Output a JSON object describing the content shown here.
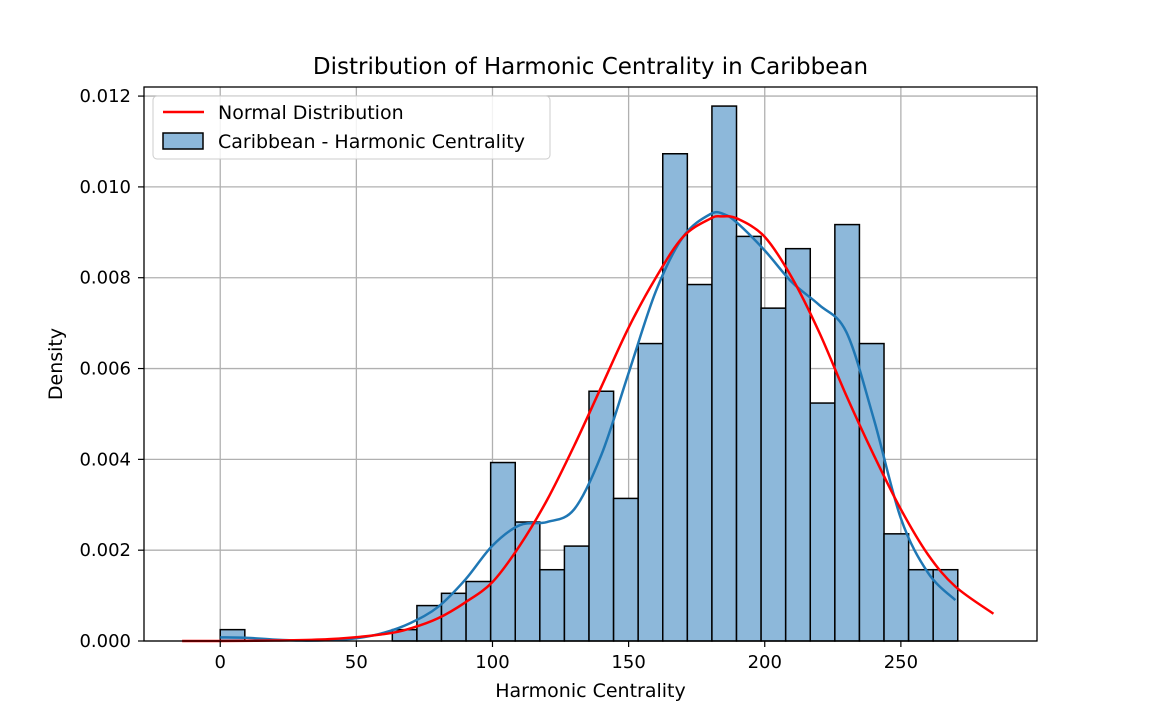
{
  "chart_data": {
    "type": "bar",
    "title": "Distribution of Harmonic Centrality in Caribbean",
    "xlabel": "Harmonic Centrality",
    "ylabel": "Density",
    "xlim": [
      -28,
      300
    ],
    "ylim": [
      0,
      0.0122
    ],
    "xticks": [
      0,
      50,
      100,
      150,
      200,
      250
    ],
    "xtick_labels": [
      "0",
      "50",
      "100",
      "150",
      "200",
      "250"
    ],
    "yticks": [
      0,
      0.002,
      0.004,
      0.006,
      0.008,
      0.01,
      0.012
    ],
    "ytick_labels": [
      "0.000",
      "0.002",
      "0.004",
      "0.006",
      "0.008",
      "0.010",
      "0.012"
    ],
    "grid": true,
    "legend_position": "upper-left",
    "legend": [
      "Normal Distribution",
      "Caribbean - Harmonic Centrality"
    ],
    "bin_edges": [
      0,
      9.03,
      18.06,
      27.09,
      36.12,
      45.15,
      54.18,
      63.21,
      72.24,
      81.27,
      90.3,
      99.33,
      108.36,
      117.39,
      126.42,
      135.45,
      144.48,
      153.51,
      162.54,
      171.57,
      180.6,
      189.63,
      198.66,
      207.69,
      216.72,
      225.75,
      234.78,
      243.81,
      252.84,
      261.87,
      270.9
    ],
    "series": [
      {
        "name": "Caribbean - Harmonic Centrality",
        "kind": "histogram",
        "color": "#8db8da",
        "edge_color": "#000000",
        "values": [
          0.00025,
          0,
          0,
          0,
          0,
          0,
          0,
          0.00025,
          0.00078,
          0.00105,
          0.00131,
          0.00393,
          0.00262,
          0.00157,
          0.00209,
          0.0055,
          0.00314,
          0.00655,
          0.01073,
          0.00785,
          0.01178,
          0.00891,
          0.00733,
          0.00864,
          0.00524,
          0.00917,
          0.00655,
          0.00236,
          0.00157,
          0.00157
        ]
      },
      {
        "name": "KDE",
        "kind": "line",
        "color": "#1f77b4",
        "x": [
          0,
          10,
          20,
          30,
          40,
          50,
          60,
          70,
          80,
          90,
          100,
          110,
          120,
          130,
          140,
          150,
          160,
          170,
          180,
          185,
          190,
          200,
          210,
          220,
          230,
          240,
          250,
          260,
          270
        ],
        "y": [
          8e-05,
          7e-05,
          3e-05,
          1e-05,
          2e-05,
          6e-05,
          0.00018,
          0.0004,
          0.00075,
          0.00135,
          0.0021,
          0.00255,
          0.00262,
          0.0029,
          0.0041,
          0.0059,
          0.0077,
          0.0089,
          0.0094,
          0.0094,
          0.0092,
          0.0086,
          0.0079,
          0.0074,
          0.0068,
          0.0049,
          0.0027,
          0.0015,
          0.0009
        ]
      },
      {
        "name": "Normal Distribution",
        "kind": "line",
        "color": "#ff0000",
        "x": [
          -14,
          0,
          20,
          40,
          60,
          70,
          80,
          90,
          100,
          110,
          120,
          130,
          140,
          150,
          160,
          170,
          180,
          184,
          190,
          200,
          210,
          220,
          230,
          240,
          250,
          260,
          270,
          284
        ],
        "y": [
          0.0,
          0.0,
          1e-05,
          4e-05,
          0.00015,
          0.00028,
          0.0005,
          0.00085,
          0.0013,
          0.0021,
          0.0031,
          0.0043,
          0.0056,
          0.0069,
          0.008,
          0.0089,
          0.0093,
          0.00935,
          0.0093,
          0.0089,
          0.008,
          0.0068,
          0.0054,
          0.0041,
          0.0029,
          0.0019,
          0.0012,
          0.0006
        ]
      }
    ]
  }
}
